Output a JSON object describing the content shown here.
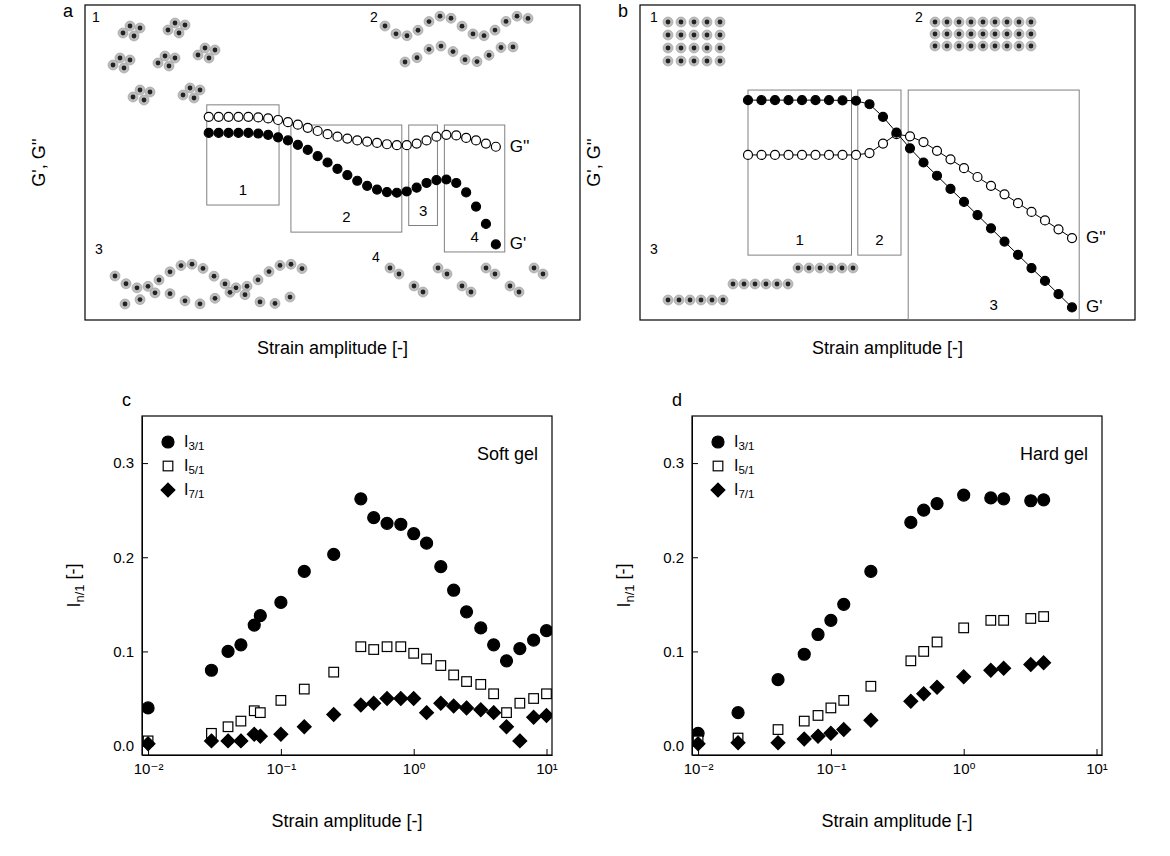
{
  "chart_data": [
    {
      "panel": "a",
      "type": "line",
      "xlabel": "Strain amplitude [-]",
      "ylabel": "G', G''",
      "tick_labels": false,
      "xlim": [
        0,
        100
      ],
      "ylim": [
        0,
        100
      ],
      "x": [
        25,
        27,
        29,
        31,
        33,
        35,
        37,
        39,
        41,
        43,
        45,
        47,
        49,
        51,
        53,
        55,
        57,
        59,
        61,
        63,
        65,
        67,
        69,
        71,
        73,
        75,
        77,
        79,
        81,
        83
      ],
      "series": [
        {
          "name": "G''",
          "marker": "open-circle",
          "line_style": "none",
          "color": "#000000",
          "values": [
            64.5,
            64.5,
            64.5,
            64.5,
            64.5,
            64.3,
            64,
            63.5,
            62.8,
            62,
            61,
            60,
            59,
            58.2,
            57.6,
            57,
            56.6,
            56.2,
            55.8,
            55.5,
            55.5,
            56,
            57,
            58.2,
            58.8,
            58.6,
            57.8,
            57,
            56,
            55
          ]
        },
        {
          "name": "G'",
          "marker": "circle",
          "line_style": "none",
          "color": "#000000",
          "values": [
            59.4,
            59.4,
            59.4,
            59.4,
            59.4,
            59.2,
            58.8,
            58,
            57,
            55.6,
            54,
            52,
            50,
            48,
            46,
            44.2,
            42.6,
            41.4,
            40.6,
            40.4,
            40.8,
            42,
            43.5,
            44.4,
            44.6,
            43.5,
            40.5,
            36,
            30.5,
            24
          ]
        }
      ],
      "regions": [
        {
          "label": "1",
          "x": [
            24.6,
            39.2
          ],
          "y": [
            36.5,
            68.3
          ]
        },
        {
          "label": "2",
          "x": [
            41.6,
            64
          ],
          "y": [
            27.9,
            61.9
          ]
        },
        {
          "label": "3",
          "x": [
            65.4,
            71.2
          ],
          "y": [
            30,
            61.9
          ]
        },
        {
          "label": "4",
          "x": [
            72.6,
            84.8
          ],
          "y": [
            21.6,
            61.9
          ]
        }
      ],
      "illustrations": [
        "1",
        "2",
        "3",
        "4"
      ]
    },
    {
      "panel": "b",
      "type": "line",
      "xlabel": "Strain amplitude [-]",
      "ylabel": "G', G''",
      "tick_labels": false,
      "xlim": [
        0,
        110
      ],
      "ylim": [
        0,
        100
      ],
      "x": [
        24,
        27,
        30,
        33,
        36,
        39,
        42,
        45,
        48,
        51,
        54,
        57,
        60,
        63,
        66,
        69,
        72,
        75,
        78,
        81,
        84,
        87,
        90,
        93,
        96
      ],
      "series": [
        {
          "name": "G''",
          "marker": "open-circle",
          "line_style": "solid",
          "color": "#000000",
          "values": [
            52.4,
            52.4,
            52.4,
            52.4,
            52.4,
            52.4,
            52.4,
            52.4,
            52.4,
            53,
            56,
            59,
            58.3,
            56.5,
            53.7,
            51,
            48.2,
            45.4,
            42.6,
            39.9,
            37.1,
            34.3,
            31.6,
            28.8,
            26
          ]
        },
        {
          "name": "G'",
          "marker": "circle",
          "line_style": "solid",
          "color": "#000000",
          "values": [
            69.8,
            69.8,
            69.8,
            69.8,
            69.8,
            69.8,
            69.8,
            69.7,
            69.6,
            68.5,
            64.5,
            59.5,
            54.5,
            50,
            45.8,
            41.6,
            37.5,
            33.3,
            29.1,
            24.9,
            20.7,
            16.5,
            12.4,
            8.2,
            4
          ]
        }
      ],
      "regions": [
        {
          "label": "1",
          "x": [
            24,
            47
          ],
          "y": [
            20.6,
            73
          ]
        },
        {
          "label": "2",
          "x": [
            48.4,
            58
          ],
          "y": [
            20.6,
            73
          ]
        },
        {
          "label": "3",
          "x": [
            59.6,
            97.6
          ],
          "y": [
            0,
            73
          ]
        }
      ],
      "illustrations": [
        "1",
        "2",
        "3"
      ]
    },
    {
      "panel": "c",
      "type": "scatter",
      "annotation": "Soft gel",
      "xlabel": "Strain amplitude [-]",
      "ylabel": "In/1 [-]",
      "log": "x",
      "xlim": [
        0.009,
        11
      ],
      "ylim": [
        -0.01,
        0.35
      ],
      "xticks": [
        {
          "value": 0.01,
          "label": "10⁻²"
        },
        {
          "value": 0.1,
          "label": "10⁻¹"
        },
        {
          "value": 1,
          "label": "10⁰"
        },
        {
          "value": 10,
          "label": "10¹"
        }
      ],
      "yticks": [
        {
          "value": 0,
          "label": "0.0"
        },
        0.1,
        0.2,
        0.3
      ],
      "legend": "upper left",
      "x": [
        0.01,
        0.03,
        0.04,
        0.05,
        0.063,
        0.07,
        0.1,
        0.15,
        0.25,
        0.4,
        0.5,
        0.63,
        0.8,
        1.0,
        1.25,
        1.6,
        2.0,
        2.5,
        3.2,
        4.0,
        5.0,
        6.3,
        8.0,
        10
      ],
      "series": [
        {
          "name": "I3/1",
          "marker": "circle",
          "line_style": "none",
          "color": "#000000",
          "values": [
            0.04,
            0.08,
            0.1,
            0.107,
            0.128,
            0.138,
            0.152,
            0.185,
            0.203,
            0.262,
            0.242,
            0.236,
            0.235,
            0.225,
            0.215,
            0.19,
            0.165,
            0.142,
            0.125,
            0.107,
            0.09,
            0.103,
            0.112,
            0.122
          ]
        },
        {
          "name": "I5/1",
          "marker": "open-square",
          "line_style": "none",
          "color": "#000000",
          "values": [
            0.005,
            0.013,
            0.02,
            0.026,
            0.037,
            0.035,
            0.048,
            0.06,
            0.078,
            0.105,
            0.102,
            0.105,
            0.105,
            0.098,
            0.092,
            0.085,
            0.075,
            0.068,
            0.065,
            0.055,
            0.035,
            0.045,
            0.05,
            0.055
          ]
        },
        {
          "name": "I7/1",
          "marker": "diamond",
          "line_style": "none",
          "color": "#000000",
          "values": [
            0.002,
            0.005,
            0.005,
            0.005,
            0.012,
            0.01,
            0.012,
            0.02,
            0.033,
            0.043,
            0.045,
            0.05,
            0.05,
            0.05,
            0.035,
            0.045,
            0.042,
            0.04,
            0.038,
            0.035,
            0.02,
            0.005,
            0.03,
            0.032
          ]
        }
      ]
    },
    {
      "panel": "d",
      "type": "scatter",
      "annotation": "Hard gel",
      "xlabel": "Strain amplitude [-]",
      "ylabel": "In/1 [-]",
      "log": "x",
      "xlim": [
        0.009,
        11
      ],
      "ylim": [
        -0.01,
        0.35
      ],
      "xticks": [
        {
          "value": 0.01,
          "label": "10⁻²"
        },
        {
          "value": 0.1,
          "label": "10⁻¹"
        },
        {
          "value": 1,
          "label": "10⁰"
        },
        {
          "value": 10,
          "label": "10¹"
        }
      ],
      "yticks": [
        {
          "value": 0,
          "label": "0.0"
        },
        0.1,
        0.2,
        0.3
      ],
      "legend": "upper left",
      "x": [
        0.01,
        0.02,
        0.04,
        0.063,
        0.08,
        0.1,
        0.125,
        0.2,
        0.4,
        0.5,
        0.63,
        1.0,
        1.6,
        2.0,
        3.2,
        4.0
      ],
      "series": [
        {
          "name": "I3/1",
          "marker": "circle",
          "line_style": "none",
          "color": "#000000",
          "values": [
            0.013,
            0.035,
            0.07,
            0.097,
            0.118,
            0.133,
            0.15,
            0.185,
            0.237,
            0.25,
            0.257,
            0.266,
            0.263,
            0.262,
            0.26,
            0.261
          ]
        },
        {
          "name": "I5/1",
          "marker": "open-square",
          "line_style": "none",
          "color": "#000000",
          "values": [
            0.005,
            0.008,
            0.017,
            0.026,
            0.032,
            0.04,
            0.048,
            0.063,
            0.09,
            0.1,
            0.11,
            0.125,
            0.133,
            0.133,
            0.135,
            0.137
          ]
        },
        {
          "name": "I7/1",
          "marker": "diamond",
          "line_style": "none",
          "color": "#000000",
          "values": [
            0.002,
            0.003,
            0.003,
            0.007,
            0.01,
            0.013,
            0.017,
            0.027,
            0.047,
            0.055,
            0.062,
            0.073,
            0.08,
            0.082,
            0.086,
            0.088
          ]
        }
      ]
    }
  ]
}
